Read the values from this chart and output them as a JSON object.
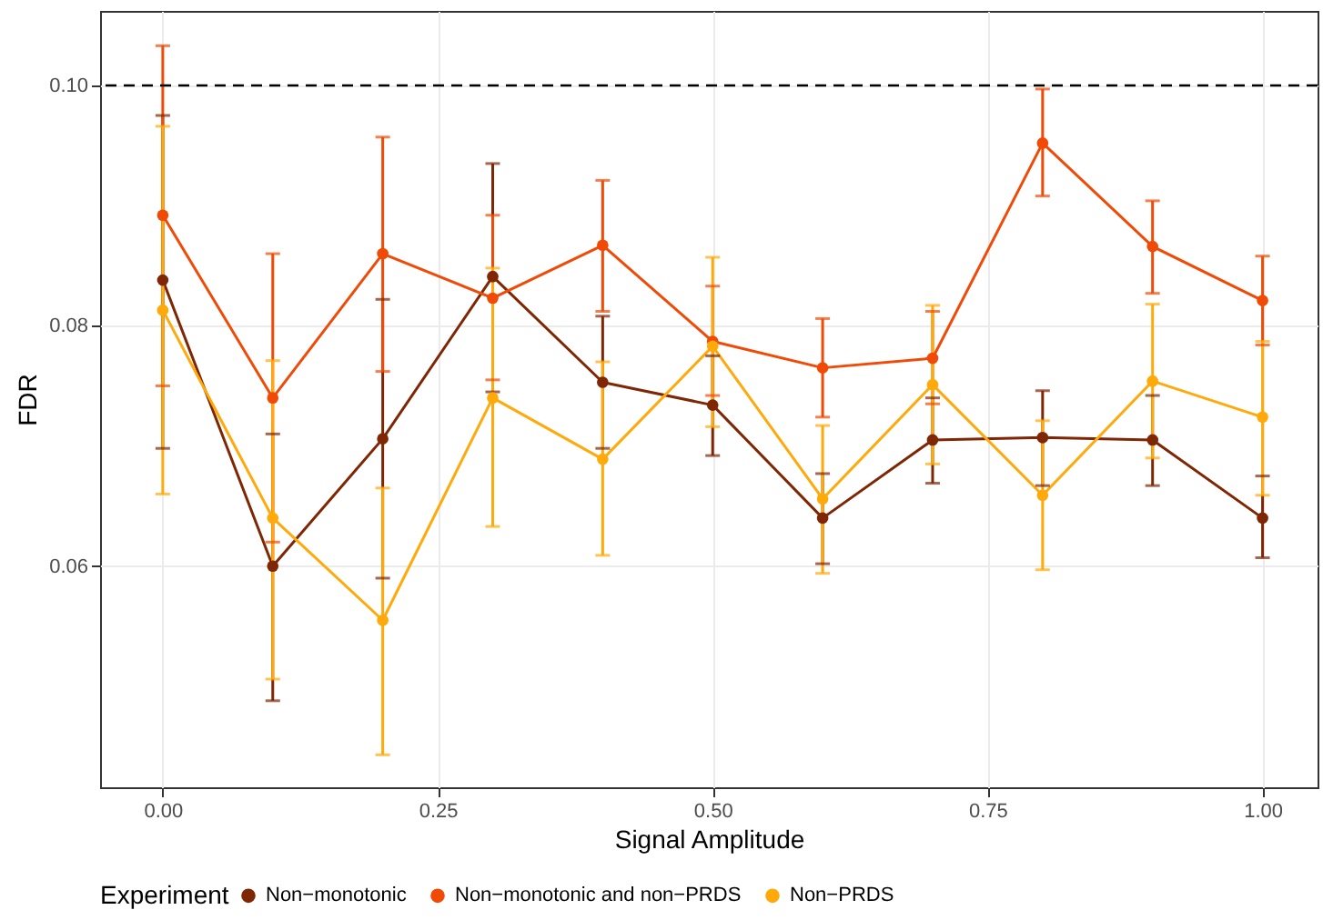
{
  "chart_data": {
    "type": "line",
    "xlabel": "Signal Amplitude",
    "ylabel": "FDR",
    "legend_title": "Experiment",
    "legend": "bottom",
    "grid": true,
    "marker": "circle",
    "line_style": "solid",
    "x": [
      0,
      0.1,
      0.2,
      0.3,
      0.4,
      0.5,
      0.6,
      0.7,
      0.8,
      0.9,
      1.0
    ],
    "xlim": [
      -0.057,
      1.05
    ],
    "ylim": [
      0.0416,
      0.1062
    ],
    "xticks": [
      {
        "value": 0,
        "label": "0.00"
      },
      {
        "value": 0.25,
        "label": "0.25"
      },
      {
        "value": 0.5,
        "label": "0.50"
      },
      {
        "value": 0.75,
        "label": "0.75"
      },
      {
        "value": 1,
        "label": "1.00"
      }
    ],
    "yticks": [
      {
        "value": 0.06,
        "label": "0.06"
      },
      {
        "value": 0.08,
        "label": "0.08"
      },
      {
        "value": 0.1,
        "label": "0.10"
      }
    ],
    "ref_lines": [
      {
        "axis": "y",
        "value": 0.1,
        "color": "#000000",
        "line_style": "dashed"
      }
    ],
    "series": [
      {
        "name": "Non−monotonic",
        "color": "#7f2704",
        "values": [
          0.0838,
          0.06,
          0.0706,
          0.0841,
          0.0753,
          0.0734,
          0.064,
          0.0705,
          0.0707,
          0.0705,
          0.064
        ],
        "errors": [
          [
            0.0698,
            0.0975
          ],
          [
            0.0488,
            0.071
          ],
          [
            0.059,
            0.0822
          ],
          [
            0.0745,
            0.0935
          ],
          [
            0.0698,
            0.0808
          ],
          [
            0.0692,
            0.0775
          ],
          [
            0.0602,
            0.0677
          ],
          [
            0.0669,
            0.074
          ],
          [
            0.0667,
            0.0746
          ],
          [
            0.0667,
            0.0742
          ],
          [
            0.0607,
            0.0675
          ]
        ]
      },
      {
        "name": "Non−monotonic and non−PRDS",
        "color": "#f04a06",
        "values": [
          0.0892,
          0.074,
          0.086,
          0.0823,
          0.0867,
          0.0787,
          0.0765,
          0.0773,
          0.0952,
          0.0866,
          0.0821
        ],
        "errors": [
          [
            0.075,
            0.1033
          ],
          [
            0.062,
            0.086
          ],
          [
            0.0762,
            0.0957
          ],
          [
            0.0755,
            0.0892
          ],
          [
            0.0812,
            0.0921
          ],
          [
            0.0742,
            0.0833
          ],
          [
            0.0724,
            0.0806
          ],
          [
            0.0735,
            0.0812
          ],
          [
            0.0908,
            0.0997
          ],
          [
            0.0827,
            0.0904
          ],
          [
            0.0784,
            0.0858
          ]
        ]
      },
      {
        "name": "Non−PRDS",
        "color": "#ffa90a",
        "values": [
          0.0813,
          0.064,
          0.0555,
          0.074,
          0.0689,
          0.0783,
          0.0656,
          0.0751,
          0.0659,
          0.0754,
          0.0724
        ],
        "errors": [
          [
            0.066,
            0.0966
          ],
          [
            0.0506,
            0.0771
          ],
          [
            0.0443,
            0.0665
          ],
          [
            0.0633,
            0.0848
          ],
          [
            0.0609,
            0.077
          ],
          [
            0.0716,
            0.0857
          ],
          [
            0.0594,
            0.0717
          ],
          [
            0.0685,
            0.0817
          ],
          [
            0.0597,
            0.0721
          ],
          [
            0.069,
            0.0818
          ],
          [
            0.0659,
            0.0787
          ]
        ]
      }
    ]
  }
}
